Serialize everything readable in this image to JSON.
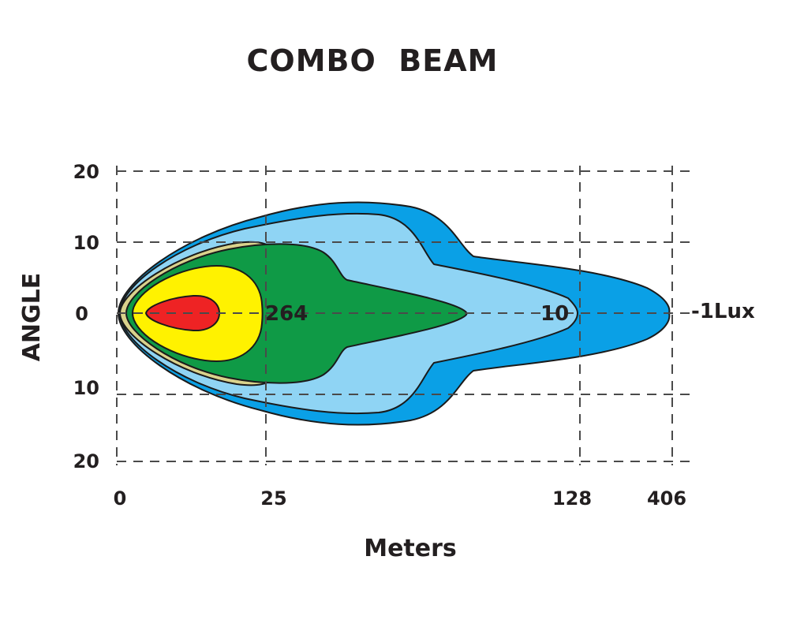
{
  "chart_data": {
    "type": "area",
    "title": "COMBO  BEAM",
    "xlabel": "Meters",
    "ylabel": "ANGLE",
    "x_ticks": [
      "0",
      "25",
      "128",
      "406"
    ],
    "y_ticks": [
      "20",
      "10",
      "0",
      "10",
      "20"
    ],
    "ylim": [
      -20,
      20
    ],
    "grid": true,
    "contours": [
      {
        "lux": "1Lux",
        "color": "#0aa0e6",
        "label": "-1Lux",
        "reach_m": 406
      },
      {
        "lux": "10",
        "color": "#8fd4f4",
        "label": "10",
        "reach_m": 128
      },
      {
        "lux": "khaki",
        "color": "#d9d28c",
        "label": ""
      },
      {
        "lux": "264",
        "color": "#0f9a46",
        "label": "264",
        "reach_m": 25
      },
      {
        "lux": "yellow",
        "color": "#fff200",
        "label": ""
      },
      {
        "lux": "red",
        "color": "#ee2324",
        "label": ""
      }
    ]
  }
}
